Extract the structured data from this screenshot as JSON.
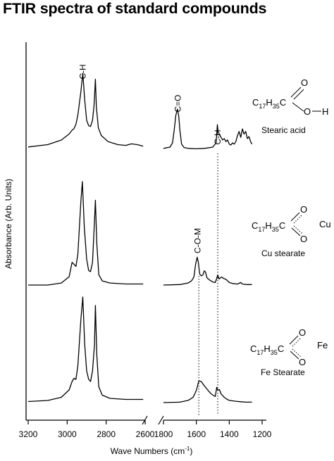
{
  "title": "FTIR spectra of standard compounds",
  "chart_data": {
    "type": "line",
    "title": "FTIR spectra of standard compounds",
    "xlabel_main": "Wave Numbers (cm",
    "xlabel_sup": "-1",
    "xlabel_tail": ")",
    "ylabel": "Absorbance (Arb. Units)",
    "x_ticks": [
      "3200",
      "3000",
      "2800",
      "2600",
      "1800",
      "1600",
      "1400",
      "1200"
    ],
    "xlim_left": [
      3200,
      2600
    ],
    "xlim_right": [
      1800,
      1200
    ],
    "axis_break": true,
    "grid": false,
    "series": [
      {
        "name": "Stearic acid",
        "left": [
          [
            3200,
            0.03
          ],
          [
            3100,
            0.06
          ],
          [
            3030,
            0.12
          ],
          [
            2990,
            0.2
          ],
          [
            2975,
            0.25
          ],
          [
            2965,
            0.27
          ],
          [
            2955,
            0.33
          ],
          [
            2945,
            0.45
          ],
          [
            2930,
            0.75
          ],
          [
            2920,
            1.0
          ],
          [
            2910,
            0.65
          ],
          [
            2900,
            0.38
          ],
          [
            2890,
            0.31
          ],
          [
            2880,
            0.3
          ],
          [
            2870,
            0.38
          ],
          [
            2862,
            0.58
          ],
          [
            2855,
            0.92
          ],
          [
            2850,
            0.55
          ],
          [
            2840,
            0.28
          ],
          [
            2825,
            0.18
          ],
          [
            2790,
            0.1
          ],
          [
            2740,
            0.06
          ],
          [
            2700,
            0.05
          ],
          [
            2670,
            0.07
          ],
          [
            2640,
            0.06
          ],
          [
            2610,
            0.04
          ]
        ],
        "right": [
          [
            1800,
            0.02
          ],
          [
            1760,
            0.05
          ],
          [
            1745,
            0.15
          ],
          [
            1735,
            0.45
          ],
          [
            1725,
            0.8
          ],
          [
            1715,
            0.95
          ],
          [
            1707,
            0.78
          ],
          [
            1700,
            0.45
          ],
          [
            1690,
            0.12
          ],
          [
            1675,
            0.04
          ],
          [
            1650,
            0.02
          ],
          [
            1600,
            0.01
          ],
          [
            1550,
            0.02
          ],
          [
            1500,
            0.05
          ],
          [
            1480,
            0.15
          ],
          [
            1472,
            0.58
          ],
          [
            1468,
            0.42
          ],
          [
            1460,
            0.35
          ],
          [
            1450,
            0.28
          ],
          [
            1440,
            0.22
          ],
          [
            1430,
            0.25
          ],
          [
            1420,
            0.18
          ],
          [
            1410,
            0.22
          ],
          [
            1400,
            0.12
          ],
          [
            1390,
            0.1
          ],
          [
            1380,
            0.15
          ],
          [
            1370,
            0.12
          ],
          [
            1360,
            0.18
          ],
          [
            1350,
            0.32
          ],
          [
            1340,
            0.42
          ],
          [
            1330,
            0.28
          ],
          [
            1320,
            0.48
          ],
          [
            1310,
            0.36
          ],
          [
            1300,
            0.42
          ],
          [
            1290,
            0.25
          ],
          [
            1280,
            0.3
          ],
          [
            1270,
            0.18
          ],
          [
            1262,
            0.12
          ]
        ],
        "annotations": [
          "C-H",
          "C=O",
          "C-H"
        ]
      },
      {
        "name": "Cu stearate",
        "left": [
          [
            3200,
            0.0
          ],
          [
            3100,
            0.0
          ],
          [
            3030,
            0.02
          ],
          [
            2990,
            0.08
          ],
          [
            2975,
            0.22
          ],
          [
            2965,
            0.2
          ],
          [
            2955,
            0.18
          ],
          [
            2945,
            0.3
          ],
          [
            2930,
            0.8
          ],
          [
            2922,
            1.0
          ],
          [
            2912,
            0.55
          ],
          [
            2900,
            0.25
          ],
          [
            2890,
            0.14
          ],
          [
            2880,
            0.13
          ],
          [
            2870,
            0.22
          ],
          [
            2860,
            0.62
          ],
          [
            2855,
            0.82
          ],
          [
            2848,
            0.4
          ],
          [
            2838,
            0.1
          ],
          [
            2820,
            0.04
          ],
          [
            2780,
            0.02
          ],
          [
            2700,
            0.01
          ],
          [
            2610,
            0.01
          ]
        ],
        "right": [
          [
            1800,
            0.0
          ],
          [
            1700,
            0.01
          ],
          [
            1650,
            0.04
          ],
          [
            1630,
            0.08
          ],
          [
            1615,
            0.16
          ],
          [
            1605,
            0.4
          ],
          [
            1595,
            0.55
          ],
          [
            1588,
            0.45
          ],
          [
            1580,
            0.22
          ],
          [
            1570,
            0.18
          ],
          [
            1560,
            0.2
          ],
          [
            1552,
            0.28
          ],
          [
            1545,
            0.26
          ],
          [
            1535,
            0.14
          ],
          [
            1520,
            0.1
          ],
          [
            1500,
            0.06
          ],
          [
            1485,
            0.05
          ],
          [
            1475,
            0.14
          ],
          [
            1470,
            0.2
          ],
          [
            1462,
            0.12
          ],
          [
            1455,
            0.14
          ],
          [
            1445,
            0.16
          ],
          [
            1435,
            0.13
          ],
          [
            1425,
            0.12
          ],
          [
            1415,
            0.1
          ],
          [
            1400,
            0.05
          ],
          [
            1380,
            0.03
          ],
          [
            1350,
            0.02
          ],
          [
            1330,
            0.05
          ],
          [
            1320,
            0.02
          ],
          [
            1290,
            0.01
          ],
          [
            1262,
            0.01
          ]
        ],
        "annotations": [
          "C-O-M"
        ]
      },
      {
        "name": "Fe Stearate",
        "left": [
          [
            3200,
            0.01
          ],
          [
            3100,
            0.02
          ],
          [
            3030,
            0.05
          ],
          [
            2990,
            0.12
          ],
          [
            2975,
            0.2
          ],
          [
            2965,
            0.23
          ],
          [
            2955,
            0.22
          ],
          [
            2945,
            0.35
          ],
          [
            2930,
            0.78
          ],
          [
            2920,
            1.0
          ],
          [
            2910,
            0.55
          ],
          [
            2900,
            0.3
          ],
          [
            2890,
            0.22
          ],
          [
            2880,
            0.2
          ],
          [
            2870,
            0.3
          ],
          [
            2860,
            0.55
          ],
          [
            2855,
            0.92
          ],
          [
            2848,
            0.45
          ],
          [
            2838,
            0.15
          ],
          [
            2820,
            0.07
          ],
          [
            2780,
            0.04
          ],
          [
            2700,
            0.03
          ],
          [
            2610,
            0.03
          ]
        ],
        "right": [
          [
            1800,
            0.0
          ],
          [
            1700,
            0.01
          ],
          [
            1650,
            0.05
          ],
          [
            1620,
            0.12
          ],
          [
            1600,
            0.28
          ],
          [
            1585,
            0.5
          ],
          [
            1570,
            0.48
          ],
          [
            1555,
            0.4
          ],
          [
            1540,
            0.33
          ],
          [
            1525,
            0.26
          ],
          [
            1510,
            0.2
          ],
          [
            1495,
            0.16
          ],
          [
            1485,
            0.14
          ],
          [
            1476,
            0.35
          ],
          [
            1470,
            0.28
          ],
          [
            1460,
            0.3
          ],
          [
            1450,
            0.2
          ],
          [
            1440,
            0.16
          ],
          [
            1430,
            0.12
          ],
          [
            1415,
            0.08
          ],
          [
            1400,
            0.05
          ],
          [
            1380,
            0.04
          ],
          [
            1360,
            0.03
          ],
          [
            1330,
            0.02
          ],
          [
            1300,
            0.01
          ],
          [
            1262,
            0.01
          ]
        ],
        "annotations": []
      }
    ],
    "reference_lines_cm1": [
      1585,
      1470
    ],
    "peak_labels": [
      {
        "text": "C-H",
        "series": "Stearic acid",
        "x": 2920,
        "panel": "left"
      },
      {
        "text": "C=O",
        "series": "Stearic acid",
        "x": 1712,
        "panel": "right"
      },
      {
        "text": "C-H",
        "series": "Stearic acid",
        "x": 1470,
        "panel": "right"
      },
      {
        "text": "C-O-M",
        "series": "Cu stearate",
        "x": 1592,
        "panel": "right"
      }
    ]
  },
  "structures": {
    "acid": {
      "C": "C",
      "sub1": "17",
      "H": "H",
      "sub2": "35",
      "C2": "C",
      "O_top": "O",
      "O": "O",
      "H2": "H",
      "caption": "Stearic acid"
    },
    "cu": {
      "C": "C",
      "sub1": "17",
      "H": "H",
      "sub2": "35",
      "C2": "C",
      "O_top": "O",
      "O_bot": "O",
      "metal": "Cu",
      "caption": "Cu stearate"
    },
    "fe": {
      "C": "C",
      "sub1": "17",
      "H": "H",
      "sub2": "35",
      "C2": "C",
      "O_top": "O",
      "O_bot": "O",
      "metal": "Fe",
      "caption": "Fe Stearate"
    }
  }
}
